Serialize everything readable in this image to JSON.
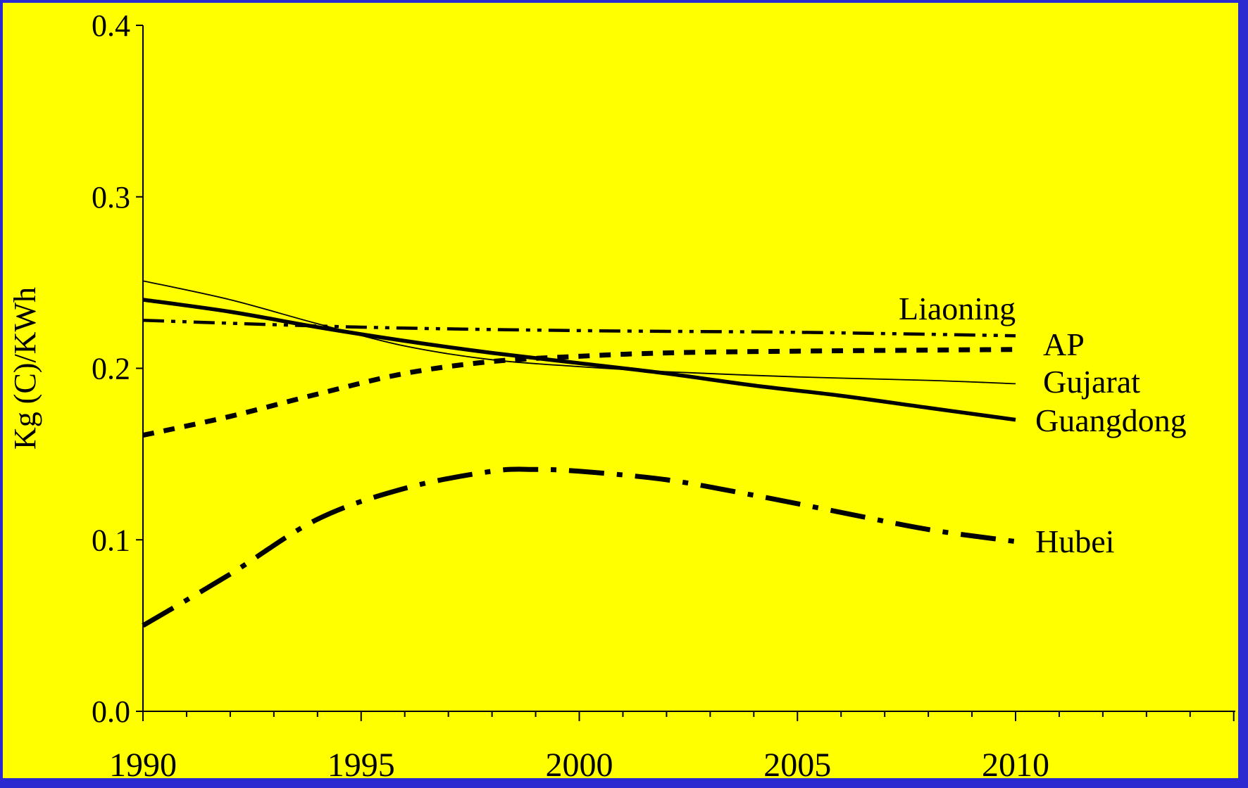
{
  "colors": {
    "background": "#ffff00",
    "border": "#2a2ad0",
    "ink": "#000000"
  },
  "chart_data": {
    "type": "line",
    "title": "",
    "xlabel": "",
    "ylabel": "Kg (C)/KWh",
    "xlim": [
      1990,
      2015
    ],
    "ylim": [
      0,
      0.4
    ],
    "x_ticks": [
      "1990",
      "1995",
      "2000",
      "2005",
      "2010"
    ],
    "y_ticks": [
      "0.0",
      "0.1",
      "0.2",
      "0.3",
      "0.4"
    ],
    "grid": false,
    "legend": "direct labels at line ends",
    "series": [
      {
        "name": "Liaoning",
        "style": "dash-dot-dot",
        "x": [
          1990,
          1995,
          2000,
          2005,
          2010
        ],
        "y": [
          0.228,
          0.224,
          0.222,
          0.221,
          0.219
        ]
      },
      {
        "name": "AP",
        "style": "dashed-heavy",
        "x": [
          1990,
          1992,
          1994,
          1996,
          1998,
          2000,
          2002,
          2005,
          2010
        ],
        "y": [
          0.161,
          0.172,
          0.185,
          0.197,
          0.204,
          0.207,
          0.209,
          0.21,
          0.211
        ]
      },
      {
        "name": "Gujarat",
        "style": "thin-solid",
        "x": [
          1990,
          1992,
          1994,
          1996,
          1998,
          2000,
          2002,
          2005,
          2008,
          2010
        ],
        "y": [
          0.251,
          0.24,
          0.226,
          0.213,
          0.205,
          0.201,
          0.198,
          0.195,
          0.193,
          0.191
        ]
      },
      {
        "name": "Guangdong",
        "style": "thick-solid",
        "x": [
          1990,
          1992,
          1994,
          1996,
          1998,
          2000,
          2002,
          2004,
          2006,
          2008,
          2010
        ],
        "y": [
          0.24,
          0.233,
          0.224,
          0.216,
          0.209,
          0.203,
          0.197,
          0.19,
          0.184,
          0.177,
          0.17
        ]
      },
      {
        "name": "Hubei",
        "style": "long-dash-dot",
        "x": [
          1990,
          1992,
          1994,
          1996,
          1998,
          1999,
          2000,
          2002,
          2004,
          2006,
          2008,
          2010
        ],
        "y": [
          0.05,
          0.08,
          0.112,
          0.13,
          0.14,
          0.141,
          0.14,
          0.135,
          0.126,
          0.116,
          0.106,
          0.099
        ]
      }
    ]
  }
}
